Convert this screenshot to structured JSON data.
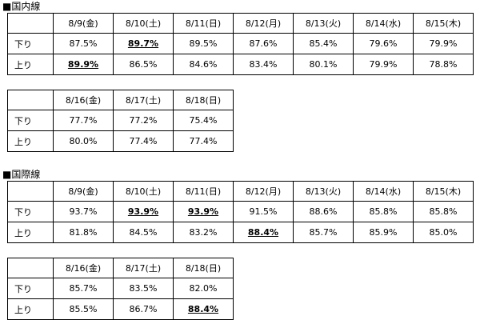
{
  "domestic": {
    "heading": "■国内線",
    "table1": {
      "headers": [
        "8/9(金)",
        "8/10(土)",
        "8/11(日)",
        "8/12(月)",
        "8/13(火)",
        "8/14(水)",
        "8/15(木)"
      ],
      "rows": [
        {
          "label": "下り",
          "cells": [
            "87.5%",
            "89.7%",
            "89.5%",
            "87.6%",
            "85.4%",
            "79.6%",
            "79.9%"
          ],
          "bold": [
            1
          ]
        },
        {
          "label": "上り",
          "cells": [
            "89.9%",
            "86.5%",
            "84.6%",
            "83.4%",
            "80.1%",
            "79.9%",
            "78.8%"
          ],
          "bold": [
            0
          ]
        }
      ]
    },
    "table2": {
      "headers": [
        "8/16(金)",
        "8/17(土)",
        "8/18(日)"
      ],
      "rows": [
        {
          "label": "下り",
          "cells": [
            "77.7%",
            "77.2%",
            "75.4%"
          ],
          "bold": []
        },
        {
          "label": "上り",
          "cells": [
            "80.0%",
            "77.4%",
            "77.4%"
          ],
          "bold": []
        }
      ]
    }
  },
  "international": {
    "heading": "■国際線",
    "table1": {
      "headers": [
        "8/9(金)",
        "8/10(土)",
        "8/11(日)",
        "8/12(月)",
        "8/13(火)",
        "8/14(水)",
        "8/15(木)"
      ],
      "rows": [
        {
          "label": "下り",
          "cells": [
            "93.7%",
            "93.9%",
            "93.9%",
            "91.5%",
            "88.6%",
            "85.8%",
            "85.8%"
          ],
          "bold": [
            1,
            2
          ]
        },
        {
          "label": "上り",
          "cells": [
            "81.8%",
            "84.5%",
            "83.2%",
            "88.4%",
            "85.7%",
            "85.9%",
            "85.0%"
          ],
          "bold": [
            3
          ]
        }
      ]
    },
    "table2": {
      "headers": [
        "8/16(金)",
        "8/17(土)",
        "8/18(日)"
      ],
      "rows": [
        {
          "label": "下り",
          "cells": [
            "85.7%",
            "83.5%",
            "82.0%"
          ],
          "bold": []
        },
        {
          "label": "上り",
          "cells": [
            "85.5%",
            "86.7%",
            "88.4%"
          ],
          "bold": [
            2
          ]
        }
      ]
    }
  }
}
